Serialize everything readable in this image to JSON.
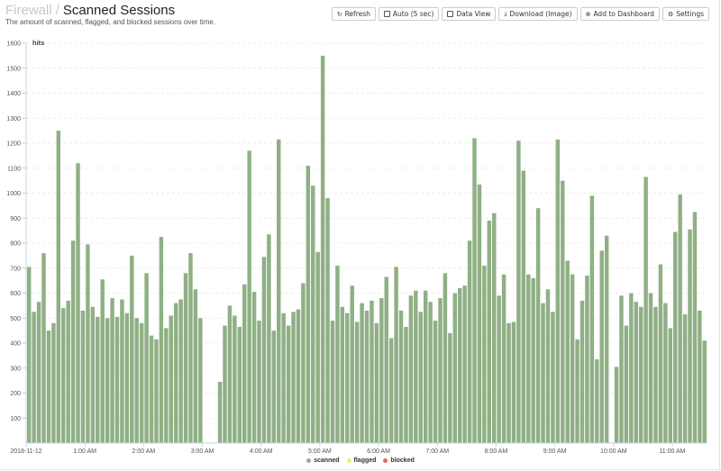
{
  "header": {
    "breadcrumb": "Firewall",
    "separator": "/",
    "title": "Scanned Sessions",
    "subtitle": "The amount of scanned, flagged, and blocked sessions over time."
  },
  "toolbar": {
    "refresh": "Refresh",
    "auto": "Auto (5 sec)",
    "data_view": "Data View",
    "download": "Download (Image)",
    "add_dashboard": "Add to Dashboard",
    "settings": "Settings"
  },
  "legend": [
    {
      "label": "scanned",
      "color": "#8fb085"
    },
    {
      "label": "flagged",
      "color": "#f0ec6e"
    },
    {
      "label": "blocked",
      "color": "#d86a6a"
    }
  ],
  "chart_data": {
    "type": "bar",
    "title": "Scanned Sessions",
    "ylabel": "hits",
    "xlabel": "",
    "ylim": [
      0,
      1600
    ],
    "yticks": [
      100,
      200,
      300,
      400,
      500,
      600,
      700,
      800,
      900,
      1000,
      1100,
      1200,
      1300,
      1400,
      1500,
      1600
    ],
    "xticks": [
      "2018-11-12",
      "1:00 AM",
      "2:00 AM",
      "3:00 AM",
      "4:00 AM",
      "5:00 AM",
      "6:00 AM",
      "7:00 AM",
      "8:00 AM",
      "9:00 AM",
      "10:00 AM",
      "11:00 AM"
    ],
    "grid": true,
    "legend_position": "bottom",
    "interval_minutes": 5,
    "series": [
      {
        "name": "scanned",
        "color": "#8fb085",
        "values": [
          705,
          525,
          565,
          760,
          450,
          480,
          1250,
          540,
          570,
          810,
          1120,
          530,
          795,
          545,
          505,
          655,
          500,
          580,
          505,
          575,
          520,
          750,
          500,
          480,
          680,
          430,
          415,
          825,
          460,
          510,
          560,
          575,
          680,
          760,
          615,
          500,
          null,
          null,
          null,
          245,
          470,
          550,
          510,
          465,
          635,
          1170,
          605,
          490,
          745,
          835,
          450,
          1215,
          520,
          470,
          525,
          535,
          640,
          1110,
          1030,
          765,
          1550,
          980,
          490,
          710,
          545,
          520,
          630,
          485,
          560,
          530,
          570,
          480,
          580,
          665,
          420,
          705,
          530,
          465,
          590,
          610,
          525,
          610,
          565,
          490,
          580,
          680,
          440,
          600,
          620,
          630,
          810,
          1220,
          1035,
          710,
          890,
          920,
          590,
          675,
          480,
          485,
          1210,
          1090,
          675,
          660,
          940,
          560,
          615,
          525,
          1215,
          1050,
          730,
          675,
          415,
          570,
          670,
          990,
          335,
          770,
          830,
          null,
          305,
          590,
          470,
          600,
          565,
          545,
          1065,
          600,
          545,
          715,
          560,
          460,
          845,
          995,
          515,
          855,
          925,
          530,
          410
        ],
        "note": "gap 3:00–3:10 AM and ~9:55 AM (no data)"
      },
      {
        "name": "flagged",
        "color": "#f0ec6e",
        "values": []
      },
      {
        "name": "blocked",
        "color": "#d86a6a",
        "values": []
      }
    ]
  }
}
